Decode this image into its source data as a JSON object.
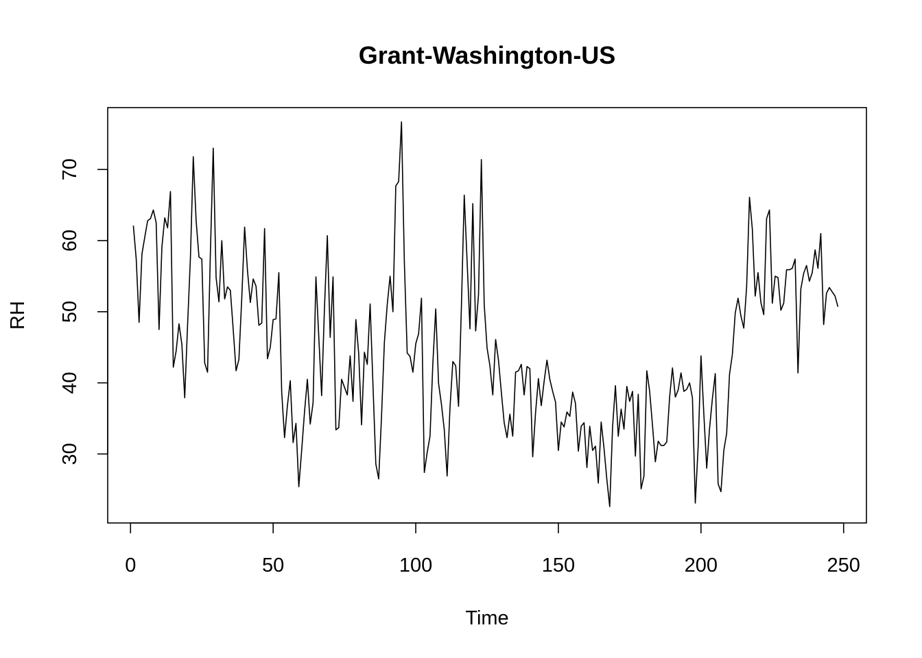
{
  "chart_data": {
    "type": "line",
    "title": "Grant-Washington-US",
    "xlabel": "Time",
    "ylabel": "RH",
    "xlim": [
      -8,
      258
    ],
    "ylim": [
      20.3,
      78.7
    ],
    "x_ticks": [
      0,
      50,
      100,
      150,
      200,
      250
    ],
    "x_tick_labels": [
      "0",
      "50",
      "100",
      "150",
      "200",
      "250"
    ],
    "y_ticks": [
      30,
      40,
      50,
      60,
      70
    ],
    "y_tick_labels": [
      "30",
      "40",
      "50",
      "60",
      "70"
    ],
    "grid": false,
    "legend": "none",
    "line_color": "#000000",
    "series": [
      {
        "x_start": 1,
        "x_step": 1,
        "values": [
          62.1,
          57.4,
          48.5,
          58.1,
          60.5,
          62.8,
          63.1,
          64.3,
          62.5,
          47.5,
          59.1,
          63.2,
          61.8,
          66.9,
          42.2,
          44.5,
          48.3,
          45.4,
          37.9,
          48.1,
          57.6,
          71.8,
          62.8,
          57.7,
          57.4,
          42.8,
          41.5,
          58.3,
          73.0,
          54.8,
          51.4,
          60.0,
          51.8,
          53.5,
          53.0,
          47.5,
          41.7,
          43.3,
          51.9,
          61.9,
          55.8,
          51.3,
          54.6,
          53.6,
          48.1,
          48.4,
          61.7,
          43.4,
          45.0,
          48.9,
          49.0,
          55.5,
          38.7,
          32.3,
          36.8,
          40.3,
          31.6,
          34.3,
          25.4,
          30.5,
          35.9,
          40.5,
          34.2,
          37.2,
          54.9,
          46.5,
          38.2,
          50.6,
          60.7,
          46.4,
          54.9,
          33.4,
          33.7,
          40.5,
          39.4,
          38.3,
          43.8,
          37.4,
          48.9,
          44.1,
          34.1,
          44.3,
          42.6,
          51.1,
          39.7,
          28.6,
          26.5,
          35.3,
          45.7,
          51.0,
          55.0,
          50.0,
          67.7,
          68.3,
          76.7,
          57.0,
          44.2,
          43.7,
          41.5,
          45.5,
          46.9,
          51.9,
          27.4,
          30.2,
          32.5,
          42.8,
          50.4,
          39.9,
          37.0,
          33.4,
          26.9,
          36.5,
          43.0,
          42.4,
          36.7,
          50.7,
          66.4,
          57.1,
          47.6,
          65.2,
          47.3,
          52.4,
          71.4,
          51.0,
          44.9,
          42.4,
          38.3,
          46.1,
          43.2,
          38.7,
          34.4,
          32.3,
          35.6,
          32.5,
          41.5,
          41.7,
          42.6,
          38.3,
          42.3,
          42.0,
          29.6,
          35.8,
          40.6,
          36.8,
          40.2,
          43.2,
          40.5,
          38.8,
          37.3,
          30.5,
          34.5,
          33.8,
          35.9,
          35.3,
          38.7,
          37.1,
          30.4,
          33.9,
          34.4,
          28.1,
          33.9,
          30.5,
          31.1,
          25.9,
          34.5,
          30.8,
          26.4,
          22.6,
          33.8,
          39.6,
          32.5,
          36.3,
          33.5,
          39.5,
          37.4,
          38.8,
          29.7,
          38.4,
          25.1,
          26.9,
          41.7,
          38.8,
          34.0,
          28.9,
          31.8,
          31.2,
          31.2,
          31.7,
          38.0,
          42.1,
          38.0,
          39.0,
          41.4,
          38.8,
          39.1,
          40.0,
          37.9,
          23.1,
          31.0,
          43.8,
          35.6,
          28.0,
          33.6,
          37.8,
          41.3,
          25.8,
          24.7,
          30.5,
          32.9,
          41.2,
          44.0,
          49.8,
          51.9,
          49.4,
          47.7,
          53.5,
          66.1,
          61.6,
          52.2,
          55.5,
          51.3,
          49.6,
          63.1,
          64.3,
          51.2,
          55.0,
          54.8,
          50.2,
          51.2,
          55.9,
          55.9,
          56.1,
          57.4,
          41.4,
          53.2,
          55.4,
          56.5,
          54.3,
          55.5,
          58.7,
          56.1,
          61.0,
          48.2,
          52.6,
          53.4,
          52.8,
          52.2,
          50.7
        ]
      }
    ]
  }
}
